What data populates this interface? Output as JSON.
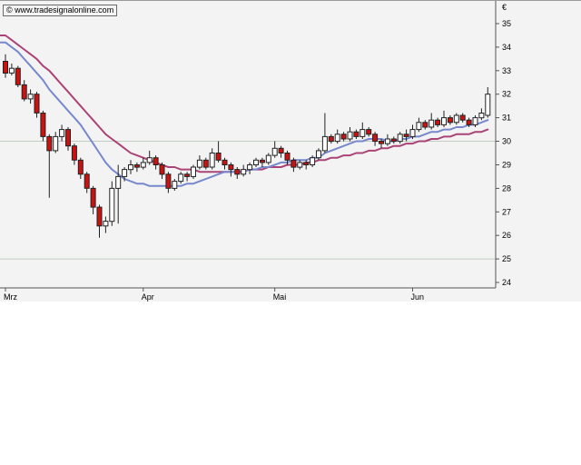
{
  "watermark": "© www.tradesignalonline.com",
  "chart_data": {
    "type": "candlestick",
    "title": "",
    "xlabel": "",
    "ylabel": "",
    "legend_position": "none",
    "y_axis": {
      "min": 24,
      "max": 35,
      "step": 1,
      "unit_label": "€",
      "gridlines": [
        25,
        30
      ]
    },
    "x_axis": {
      "month_ticks": [
        {
          "label": "Mrz",
          "index": 0
        },
        {
          "label": "Apr",
          "index": 22
        },
        {
          "label": "Mai",
          "index": 43
        },
        {
          "label": "Jun",
          "index": 65
        }
      ]
    },
    "candles_format": [
      "open",
      "high",
      "low",
      "close"
    ],
    "candles": [
      [
        33.4,
        33.7,
        32.7,
        32.9
      ],
      [
        32.9,
        33.3,
        32.8,
        33.1
      ],
      [
        33.1,
        33.2,
        32.3,
        32.4
      ],
      [
        32.4,
        32.6,
        31.7,
        31.8
      ],
      [
        31.8,
        32.2,
        31.6,
        32.0
      ],
      [
        32.0,
        32.1,
        31.0,
        31.2
      ],
      [
        31.2,
        31.3,
        30.0,
        30.2
      ],
      [
        30.2,
        30.3,
        27.6,
        29.6
      ],
      [
        29.6,
        30.4,
        29.5,
        30.2
      ],
      [
        30.2,
        30.7,
        30.0,
        30.5
      ],
      [
        30.5,
        30.6,
        29.6,
        29.8
      ],
      [
        29.8,
        29.9,
        29.0,
        29.2
      ],
      [
        29.2,
        29.3,
        28.4,
        28.6
      ],
      [
        28.6,
        28.7,
        27.8,
        28.0
      ],
      [
        28.0,
        28.1,
        26.9,
        27.2
      ],
      [
        27.2,
        27.3,
        25.9,
        26.4
      ],
      [
        26.4,
        26.8,
        26.1,
        26.6
      ],
      [
        26.6,
        28.3,
        26.4,
        28.0
      ],
      [
        28.0,
        29.0,
        26.5,
        28.5
      ],
      [
        28.5,
        28.9,
        28.3,
        28.8
      ],
      [
        28.8,
        29.2,
        28.6,
        29.0
      ],
      [
        29.0,
        29.1,
        28.7,
        28.9
      ],
      [
        28.9,
        29.3,
        28.8,
        29.1
      ],
      [
        29.1,
        29.6,
        29.0,
        29.3
      ],
      [
        29.3,
        29.4,
        28.8,
        29.0
      ],
      [
        29.0,
        29.1,
        28.4,
        28.6
      ],
      [
        28.6,
        28.7,
        27.8,
        28.0
      ],
      [
        28.0,
        28.4,
        27.9,
        28.3
      ],
      [
        28.3,
        28.7,
        28.2,
        28.6
      ],
      [
        28.6,
        28.7,
        28.3,
        28.5
      ],
      [
        28.5,
        29.0,
        28.4,
        28.9
      ],
      [
        28.9,
        29.4,
        28.8,
        29.2
      ],
      [
        29.2,
        29.3,
        28.8,
        28.9
      ],
      [
        28.9,
        29.7,
        28.8,
        29.5
      ],
      [
        29.5,
        30.0,
        29.1,
        29.2
      ],
      [
        29.2,
        29.3,
        28.8,
        29.0
      ],
      [
        29.0,
        29.1,
        28.5,
        28.8
      ],
      [
        28.8,
        28.9,
        28.4,
        28.6
      ],
      [
        28.6,
        29.0,
        28.5,
        28.8
      ],
      [
        28.8,
        29.1,
        28.6,
        29.0
      ],
      [
        29.0,
        29.3,
        28.9,
        29.2
      ],
      [
        29.2,
        29.3,
        28.9,
        29.1
      ],
      [
        29.1,
        29.5,
        29.0,
        29.4
      ],
      [
        29.4,
        30.0,
        29.3,
        29.7
      ],
      [
        29.7,
        29.8,
        29.3,
        29.5
      ],
      [
        29.5,
        29.6,
        29.0,
        29.2
      ],
      [
        29.2,
        29.3,
        28.7,
        28.9
      ],
      [
        28.9,
        29.2,
        28.8,
        29.1
      ],
      [
        29.1,
        29.2,
        28.8,
        29.0
      ],
      [
        29.0,
        29.4,
        28.9,
        29.3
      ],
      [
        29.3,
        29.7,
        29.2,
        29.6
      ],
      [
        29.6,
        31.2,
        29.5,
        30.2
      ],
      [
        30.2,
        30.3,
        29.9,
        30.0
      ],
      [
        30.0,
        30.5,
        29.9,
        30.3
      ],
      [
        30.3,
        30.4,
        30.0,
        30.1
      ],
      [
        30.1,
        30.6,
        30.0,
        30.4
      ],
      [
        30.4,
        30.5,
        30.1,
        30.2
      ],
      [
        30.2,
        30.8,
        30.1,
        30.5
      ],
      [
        30.5,
        30.6,
        30.2,
        30.3
      ],
      [
        30.3,
        30.4,
        29.8,
        30.0
      ],
      [
        30.0,
        30.1,
        29.7,
        29.9
      ],
      [
        29.9,
        30.3,
        29.8,
        30.1
      ],
      [
        30.1,
        30.2,
        29.9,
        30.0
      ],
      [
        30.0,
        30.4,
        29.9,
        30.3
      ],
      [
        30.3,
        30.5,
        30.0,
        30.2
      ],
      [
        30.2,
        30.7,
        30.1,
        30.5
      ],
      [
        30.5,
        31.0,
        30.4,
        30.8
      ],
      [
        30.8,
        30.9,
        30.5,
        30.6
      ],
      [
        30.6,
        31.2,
        30.5,
        30.9
      ],
      [
        30.9,
        31.0,
        30.6,
        30.7
      ],
      [
        30.7,
        31.3,
        30.6,
        31.0
      ],
      [
        31.0,
        31.1,
        30.7,
        30.8
      ],
      [
        30.8,
        31.2,
        30.7,
        31.1
      ],
      [
        31.1,
        31.2,
        30.8,
        30.9
      ],
      [
        30.9,
        31.0,
        30.6,
        30.7
      ],
      [
        30.7,
        31.1,
        30.6,
        31.0
      ],
      [
        31.0,
        31.4,
        30.9,
        31.2
      ],
      [
        31.1,
        32.3,
        31.0,
        32.0
      ]
    ],
    "overlays": [
      {
        "name": "moving-average-slow",
        "color": "#aa4477",
        "values": [
          34.5,
          34.3,
          34.1,
          33.9,
          33.7,
          33.5,
          33.2,
          33.0,
          32.7,
          32.4,
          32.1,
          31.8,
          31.5,
          31.2,
          30.9,
          30.6,
          30.3,
          30.1,
          29.9,
          29.7,
          29.5,
          29.4,
          29.3,
          29.2,
          29.1,
          29.0,
          28.9,
          28.9,
          28.8,
          28.8,
          28.8,
          28.7,
          28.7,
          28.7,
          28.7,
          28.7,
          28.7,
          28.7,
          28.7,
          28.8,
          28.8,
          28.8,
          28.9,
          28.9,
          28.9,
          29.0,
          29.0,
          29.0,
          29.1,
          29.1,
          29.2,
          29.2,
          29.3,
          29.3,
          29.4,
          29.4,
          29.5,
          29.5,
          29.6,
          29.6,
          29.7,
          29.7,
          29.8,
          29.8,
          29.9,
          29.9,
          30.0,
          30.0,
          30.1,
          30.1,
          30.2,
          30.2,
          30.3,
          30.3,
          30.3,
          30.4,
          30.4,
          30.5
        ]
      },
      {
        "name": "moving-average-fast",
        "color": "#7788cc",
        "values": [
          34.2,
          34.0,
          33.8,
          33.5,
          33.2,
          32.9,
          32.6,
          32.2,
          31.9,
          31.6,
          31.3,
          31.0,
          30.7,
          30.3,
          29.9,
          29.5,
          29.1,
          28.8,
          28.6,
          28.4,
          28.3,
          28.2,
          28.2,
          28.1,
          28.1,
          28.1,
          28.1,
          28.1,
          28.1,
          28.2,
          28.2,
          28.3,
          28.4,
          28.5,
          28.6,
          28.7,
          28.7,
          28.7,
          28.7,
          28.8,
          28.8,
          28.9,
          28.9,
          29.0,
          29.1,
          29.1,
          29.2,
          29.2,
          29.2,
          29.3,
          29.3,
          29.5,
          29.6,
          29.7,
          29.8,
          29.9,
          30.0,
          30.0,
          30.1,
          30.1,
          30.1,
          30.0,
          30.0,
          30.1,
          30.1,
          30.2,
          30.2,
          30.3,
          30.4,
          30.4,
          30.5,
          30.5,
          30.6,
          30.6,
          30.7,
          30.7,
          30.8,
          30.9
        ]
      }
    ],
    "colors": {
      "up_body": "#ffffff",
      "down_body": "#cc1111",
      "outline": "#222222",
      "wick": "#222222",
      "grid": "#c2ccc2",
      "axis": "#555555",
      "text": "#000000",
      "background": "#f3f3f3"
    }
  }
}
